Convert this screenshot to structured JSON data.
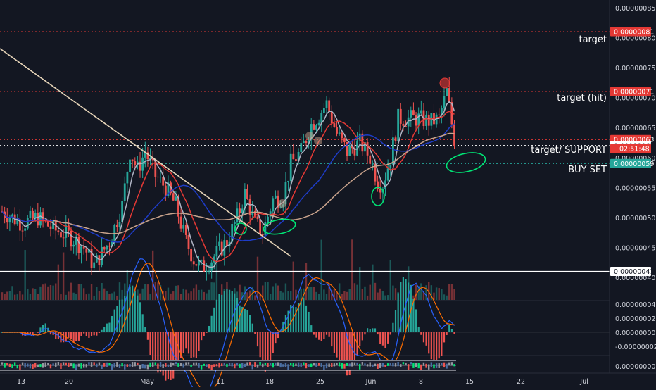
{
  "colors": {
    "background": "#131722",
    "up_candle": "#26a69a",
    "down_candle": "#ef5350",
    "target_line": "#e53935",
    "support_line": "#ffffff",
    "buy_line": "#26a69a",
    "trendline": "#e6d4b8",
    "ma_fast": "#b0b4c4",
    "ma_red": "#e53935",
    "ma_blue": "#1e3cc8",
    "ma_tan": "#c9a38c",
    "highlight_green": "#00e676"
  },
  "chart_data": [
    {
      "type": "candlestick",
      "title": "",
      "x_tick_labels": [
        "13",
        "20",
        "May",
        "11",
        "18",
        "25",
        "Jun",
        "8",
        "15",
        "22",
        "Jul"
      ],
      "y_tick_labels": [
        "0.00000085",
        "0.00000080",
        "0.00000075",
        "0.00000070",
        "0.00000065",
        "0.00000060",
        "0.00000055",
        "0.00000050",
        "0.00000045",
        "0.00000040"
      ],
      "ylim": [
        3.8e-07,
        8.55e-07
      ],
      "grid": false,
      "price_path": [
        [
          0,
          5.1e-07
        ],
        [
          8,
          4.9e-07
        ],
        [
          14,
          5e-07
        ],
        [
          20,
          4.8e-07
        ],
        [
          26,
          4.7e-07
        ],
        [
          32,
          4.5e-07
        ],
        [
          36,
          4.2e-07
        ],
        [
          42,
          4.6e-07
        ],
        [
          47,
          5.2e-07
        ],
        [
          50,
          6.1e-07
        ],
        [
          53,
          5.8e-07
        ],
        [
          56,
          6.1e-07
        ],
        [
          60,
          5.7e-07
        ],
        [
          64,
          5.5e-07
        ],
        [
          68,
          5.2e-07
        ],
        [
          72,
          4.6e-07
        ],
        [
          75,
          4.3e-07
        ],
        [
          78,
          4.15e-07
        ],
        [
          82,
          4.3e-07
        ],
        [
          86,
          4.5e-07
        ],
        [
          88,
          4.6e-07
        ],
        [
          92,
          5e-07
        ],
        [
          95,
          5.4e-07
        ],
        [
          99,
          4.9e-07
        ],
        [
          102,
          4.75e-07
        ],
        [
          106,
          5.3e-07
        ],
        [
          110,
          5.35e-07
        ],
        [
          113,
          5.9e-07
        ],
        [
          117,
          6.1e-07
        ],
        [
          121,
          6.55e-07
        ],
        [
          124,
          6.7e-07
        ],
        [
          127,
          6.9e-07
        ],
        [
          131,
          6.4e-07
        ],
        [
          135,
          6.1e-07
        ],
        [
          140,
          6.25e-07
        ],
        [
          144,
          6e-07
        ],
        [
          147,
          5.6e-07
        ],
        [
          149,
          5.55e-07
        ],
        [
          152,
          6e-07
        ],
        [
          155,
          6.65e-07
        ],
        [
          159,
          6.65e-07
        ],
        [
          163,
          6.65e-07
        ],
        [
          168,
          6.6e-07
        ],
        [
          171,
          6.65e-07
        ],
        [
          174,
          7.1e-07
        ],
        [
          177,
          6.3e-07
        ]
      ],
      "current_price": "0.00000062",
      "countdown": "02:51:48",
      "price_labels": [
        {
          "text": "0.00000081",
          "color": "#e53935"
        },
        {
          "text": "0.00000071",
          "color": "#e53935"
        },
        {
          "text": "0.00000063",
          "color": "#e53935"
        },
        {
          "text": "0.00000059",
          "color": "#26a69a"
        },
        {
          "text": "0.00000041",
          "color": "#ffffff"
        }
      ],
      "horizontal_levels": [
        {
          "value": 8.1e-07,
          "style": "dotted",
          "color": "#e53935",
          "label": "target"
        },
        {
          "value": 7.1e-07,
          "style": "dotted",
          "color": "#e53935",
          "label": "target (hit)"
        },
        {
          "value": 6.3e-07,
          "style": "dotted",
          "color": "#e53935",
          "label": ""
        },
        {
          "value": 6.2e-07,
          "style": "dotted",
          "color": "#ffffff",
          "label": "target/ SUPPORT"
        },
        {
          "value": 5.9e-07,
          "style": "dotted",
          "color": "#26a69a",
          "label": "BUY SET"
        },
        {
          "value": 4.1e-07,
          "style": "solid",
          "color": "#ffffff",
          "label": ""
        }
      ],
      "moving_averages": [
        {
          "color": "#b0b4c4",
          "period_hint": "fast"
        },
        {
          "color": "#e53935",
          "period_hint": "medium"
        },
        {
          "color": "#1e3cc8",
          "period_hint": "slow"
        },
        {
          "color": "#c9a38c",
          "period_hint": "long"
        }
      ],
      "annotations": [
        "target",
        "target (hit)",
        "target/ SUPPORT",
        "BUY SET"
      ]
    },
    {
      "type": "bar",
      "title": "",
      "panel": "volume"
    },
    {
      "type": "line",
      "title": "",
      "panel": "macd",
      "y_tick_labels": [
        "0.00000004",
        "0.00000002",
        "0.00000000",
        "-0.00000002"
      ],
      "ylim": [
        -3.5e-08,
        4.5e-08
      ],
      "series_colors": [
        "#2962ff",
        "#ff6d00"
      ]
    },
    {
      "type": "heatmap",
      "title": "",
      "panel": "oscillator",
      "y_tick_labels": [
        "0.00000000"
      ]
    }
  ]
}
